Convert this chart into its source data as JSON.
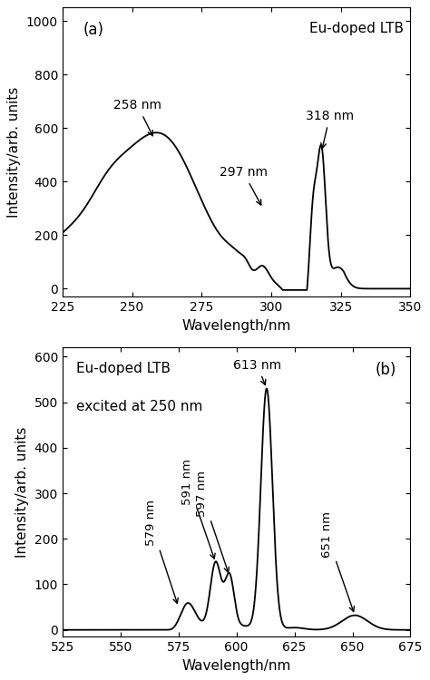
{
  "panel_a": {
    "title": "Eu-doped LTB",
    "xlabel": "Wavelength/nm",
    "ylabel": "Intensity/arb. units",
    "label": "(a)",
    "xlim": [
      225,
      350
    ],
    "ylim": [
      -30,
      1050
    ],
    "yticks": [
      0,
      200,
      400,
      600,
      800,
      1000
    ],
    "xticks": [
      225,
      250,
      275,
      300,
      325,
      350
    ]
  },
  "panel_b": {
    "title": "Eu-doped LTB",
    "subtitle": "excited at 250 nm",
    "xlabel": "Wavelength/nm",
    "ylabel": "Intensity/arb. units",
    "label": "(b)",
    "xlim": [
      525,
      675
    ],
    "ylim": [
      -15,
      620
    ],
    "yticks": [
      0,
      100,
      200,
      300,
      400,
      500,
      600
    ],
    "xticks": [
      525,
      550,
      575,
      600,
      625,
      650,
      675
    ]
  }
}
